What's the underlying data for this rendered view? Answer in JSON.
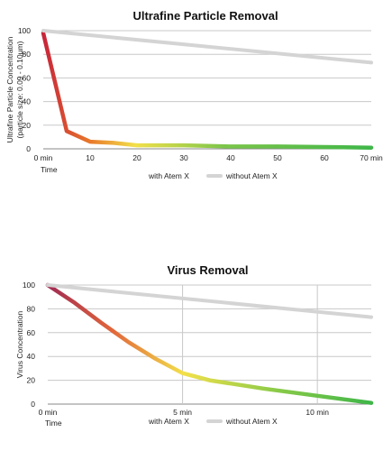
{
  "chart_data": [
    {
      "type": "line",
      "title": "Ultrafine Particle Removal",
      "ylabel": "Ultrafine Particle Concentration",
      "ylabel2": "(particle size: 0.09 - 0.10µm)",
      "xlabel": "Time",
      "ylim": [
        0,
        100
      ],
      "xlim": [
        0,
        70
      ],
      "yticks": [
        "0",
        "20",
        "40",
        "60",
        "80",
        "100"
      ],
      "xticks": [
        {
          "v": 0,
          "label": "0 min"
        },
        {
          "v": 10,
          "label": "10"
        },
        {
          "v": 20,
          "label": "20"
        },
        {
          "v": 30,
          "label": "30"
        },
        {
          "v": 40,
          "label": "40"
        },
        {
          "v": 50,
          "label": "50"
        },
        {
          "v": 60,
          "label": "60"
        },
        {
          "v": 70,
          "label": "70 min"
        }
      ],
      "vgrid": [],
      "series": [
        {
          "name": "with Atem X",
          "style": "gradient",
          "x": [
            0,
            5,
            10,
            15,
            20,
            30,
            40,
            50,
            60,
            70
          ],
          "y": [
            98,
            15,
            6,
            5,
            3,
            3,
            2,
            2,
            1.5,
            1
          ]
        },
        {
          "name": "without Atem X",
          "style": "gray",
          "x": [
            0,
            70
          ],
          "y": [
            100,
            73
          ]
        }
      ],
      "legend_position": "bottom"
    },
    {
      "type": "line",
      "title": "Virus Removal",
      "ylabel": "Virus Concentration",
      "ylabel2": "",
      "xlabel": "Time",
      "ylim": [
        0,
        100
      ],
      "xlim": [
        0,
        12
      ],
      "yticks": [
        "0",
        "20",
        "40",
        "60",
        "80",
        "100"
      ],
      "xticks": [
        {
          "v": 0,
          "label": "0 min"
        },
        {
          "v": 5,
          "label": "5 min"
        },
        {
          "v": 10,
          "label": "10 min"
        }
      ],
      "vgrid": [
        5,
        10
      ],
      "series": [
        {
          "name": "with Atem X",
          "style": "gradient",
          "x": [
            0,
            1,
            2,
            3,
            4,
            5,
            6,
            8,
            10,
            12
          ],
          "y": [
            100,
            85,
            68,
            52,
            38,
            26,
            20,
            13,
            7,
            1
          ]
        },
        {
          "name": "without Atem X",
          "style": "gray",
          "x": [
            0,
            12
          ],
          "y": [
            100,
            73
          ]
        }
      ],
      "legend_position": "bottom"
    }
  ],
  "colors": {
    "gradient_start": "#c8243a",
    "gradient_mid1": "#e8772a",
    "gradient_mid2": "#f2e04a",
    "gradient_end": "#3fb649",
    "without": "#d4d4d4"
  }
}
